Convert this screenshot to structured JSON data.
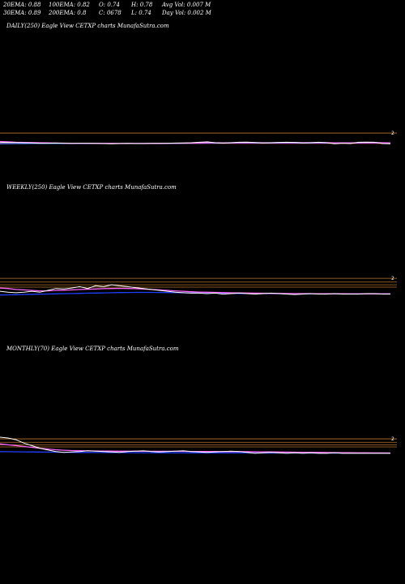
{
  "header": {
    "ema20": "20EMA: 0.88",
    "ema100": "100EMA: 0.82",
    "open": "O: 0.74",
    "high": "H: 0.78",
    "avg_vol": "Avg Vol: 0.007  M",
    "ema30": "30EMA: 0.89",
    "ema200": "200EMA: 0.8",
    "close": "C: 0678",
    "low": "L: 0.74",
    "day_vol": "Day Vol: 0.002  M"
  },
  "colors": {
    "background": "#000000",
    "price": "#ffffff",
    "ema_fast": "#ff66ff",
    "ema_mid": "#4a7dff",
    "ema_slow": "#1f3fff",
    "ema_red": "#ff3333",
    "level_line": "#b8742e"
  },
  "chart_data": [
    {
      "type": "line",
      "label": "DAILY(250) Eagle   View  CETXP charts MunafaSutra.com",
      "right_tick": "2",
      "ylim": [
        0,
        2.1
      ],
      "reference_levels": [
        2
      ],
      "series": [
        {
          "color": "#ffffff",
          "values": [
            0.92,
            0.9,
            0.88,
            0.86,
            0.84,
            0.8,
            0.8,
            0.82,
            0.8,
            0.78,
            0.8,
            0.8,
            0.78,
            0.76,
            0.74,
            0.76,
            0.78,
            0.76,
            0.76,
            0.78,
            0.78,
            0.8,
            0.82,
            0.84,
            0.86,
            0.92,
            0.96,
            0.86,
            0.82,
            0.86,
            0.92,
            0.94,
            0.88,
            0.84,
            0.86,
            0.9,
            0.92,
            0.9,
            0.84,
            0.86,
            0.92,
            0.86,
            0.74,
            0.8,
            0.76,
            0.92,
            0.94,
            0.92,
            0.76,
            0.74
          ]
        },
        {
          "color": "#ff66ff",
          "values": [
            1.0,
            0.96,
            0.92,
            0.9,
            0.88,
            0.86,
            0.84,
            0.82,
            0.81,
            0.8,
            0.8,
            0.79,
            0.79,
            0.78,
            0.78,
            0.77,
            0.77,
            0.77,
            0.77,
            0.78,
            0.78,
            0.79,
            0.8,
            0.81,
            0.82,
            0.84,
            0.86,
            0.86,
            0.85,
            0.86,
            0.87,
            0.88,
            0.87,
            0.86,
            0.86,
            0.87,
            0.88,
            0.88,
            0.87,
            0.87,
            0.88,
            0.87,
            0.85,
            0.85,
            0.84,
            0.86,
            0.88,
            0.88,
            0.86,
            0.84
          ]
        },
        {
          "color": "#4a7dff",
          "values": [
            0.74,
            0.75,
            0.76,
            0.76,
            0.77,
            0.77,
            0.77,
            0.77,
            0.77,
            0.77,
            0.77,
            0.77,
            0.77,
            0.77,
            0.77,
            0.77,
            0.77,
            0.77,
            0.77,
            0.78,
            0.78,
            0.78,
            0.79,
            0.79,
            0.8,
            0.8,
            0.81,
            0.81,
            0.81,
            0.82,
            0.82,
            0.82,
            0.82,
            0.82,
            0.82,
            0.83,
            0.83,
            0.83,
            0.83,
            0.83,
            0.83,
            0.83,
            0.83,
            0.83,
            0.83,
            0.83,
            0.84,
            0.84,
            0.84,
            0.84
          ]
        },
        {
          "color": "#ff3333",
          "values": [
            0.78,
            0.78,
            0.78,
            0.78,
            0.78,
            0.78,
            0.78,
            0.78,
            0.78,
            0.78,
            0.78,
            0.78,
            0.78,
            0.78,
            0.78,
            0.78,
            0.78,
            0.78,
            0.78,
            0.79,
            0.79,
            0.79,
            0.79,
            0.79,
            0.79,
            0.79,
            0.8,
            0.8,
            0.8,
            0.8,
            0.8,
            0.8,
            0.8,
            0.8,
            0.8,
            0.8,
            0.8,
            0.8,
            0.8,
            0.8,
            0.8,
            0.8,
            0.8,
            0.8,
            0.8,
            0.8,
            0.8,
            0.8,
            0.8,
            0.8
          ]
        }
      ]
    },
    {
      "type": "line",
      "label": "WEEKLY(250) Eagle   View  CETXP charts MunafaSutra.com",
      "right_tick": "2",
      "ylim": [
        0,
        2.1
      ],
      "reference_levels": [
        2,
        1.6,
        1.3,
        1.05
      ],
      "series": [
        {
          "color": "#ffffff",
          "values": [
            0.6,
            0.5,
            0.45,
            0.5,
            0.6,
            0.5,
            0.7,
            0.9,
            0.85,
            0.95,
            1.1,
            0.9,
            1.2,
            1.1,
            1.3,
            1.2,
            1.1,
            1.0,
            0.9,
            0.8,
            0.7,
            0.6,
            0.5,
            0.45,
            0.4,
            0.4,
            0.35,
            0.4,
            0.3,
            0.35,
            0.4,
            0.35,
            0.3,
            0.35,
            0.4,
            0.35,
            0.3,
            0.25,
            0.3,
            0.35,
            0.3,
            0.3,
            0.35,
            0.3,
            0.3,
            0.3,
            0.35,
            0.35,
            0.3,
            0.3
          ]
        },
        {
          "color": "#ff66ff",
          "values": [
            0.95,
            0.9,
            0.8,
            0.75,
            0.7,
            0.65,
            0.65,
            0.7,
            0.72,
            0.75,
            0.8,
            0.82,
            0.85,
            0.88,
            0.9,
            0.92,
            0.9,
            0.88,
            0.85,
            0.8,
            0.75,
            0.7,
            0.65,
            0.6,
            0.55,
            0.52,
            0.5,
            0.48,
            0.46,
            0.44,
            0.42,
            0.41,
            0.4,
            0.39,
            0.38,
            0.37,
            0.36,
            0.35,
            0.35,
            0.34,
            0.34,
            0.33,
            0.33,
            0.33,
            0.32,
            0.32,
            0.32,
            0.32,
            0.32,
            0.32
          ]
        },
        {
          "color": "#1f3fff",
          "values": [
            0.2,
            0.22,
            0.24,
            0.26,
            0.28,
            0.3,
            0.31,
            0.33,
            0.35,
            0.36,
            0.38,
            0.4,
            0.41,
            0.43,
            0.45,
            0.46,
            0.47,
            0.48,
            0.48,
            0.48,
            0.47,
            0.46,
            0.45,
            0.44,
            0.43,
            0.42,
            0.41,
            0.4,
            0.39,
            0.38,
            0.37,
            0.37,
            0.36,
            0.36,
            0.35,
            0.35,
            0.34,
            0.34,
            0.34,
            0.33,
            0.33,
            0.33,
            0.33,
            0.32,
            0.32,
            0.32,
            0.32,
            0.32,
            0.32,
            0.32
          ]
        }
      ]
    },
    {
      "type": "line",
      "label": "MONTHLY(70) Eagle   View  CETXP charts MunafaSutra.com",
      "right_tick": "2",
      "ylim": [
        0,
        2.1
      ],
      "reference_levels": [
        2,
        1.6,
        1.3,
        1.05
      ],
      "series": [
        {
          "color": "#ffffff",
          "values": [
            2.2,
            2.1,
            1.9,
            1.5,
            1.2,
            0.9,
            0.7,
            0.5,
            0.4,
            0.45,
            0.5,
            0.6,
            0.55,
            0.5,
            0.45,
            0.4,
            0.5,
            0.55,
            0.6,
            0.5,
            0.45,
            0.5,
            0.55,
            0.6,
            0.5,
            0.45,
            0.4,
            0.45,
            0.5,
            0.55,
            0.5,
            0.4,
            0.3,
            0.35,
            0.4,
            0.35,
            0.3,
            0.35,
            0.3,
            0.35,
            0.3,
            0.3,
            0.35,
            0.3,
            0.3,
            0.3,
            0.3,
            0.3,
            0.3,
            0.3
          ]
        },
        {
          "color": "#ff66ff",
          "values": [
            1.4,
            1.3,
            1.2,
            1.1,
            1.0,
            0.9,
            0.8,
            0.72,
            0.66,
            0.62,
            0.6,
            0.58,
            0.57,
            0.56,
            0.55,
            0.54,
            0.54,
            0.54,
            0.54,
            0.53,
            0.53,
            0.53,
            0.53,
            0.53,
            0.52,
            0.52,
            0.51,
            0.51,
            0.5,
            0.5,
            0.5,
            0.49,
            0.48,
            0.47,
            0.46,
            0.45,
            0.44,
            0.43,
            0.42,
            0.41,
            0.4,
            0.39,
            0.38,
            0.37,
            0.36,
            0.35,
            0.35,
            0.34,
            0.34,
            0.33
          ]
        },
        {
          "color": "#1f3fff",
          "values": [
            0.5,
            0.49,
            0.48,
            0.47,
            0.46,
            0.45,
            0.44,
            0.43,
            0.42,
            0.41,
            0.4,
            0.4,
            0.39,
            0.39,
            0.38,
            0.38,
            0.38,
            0.37,
            0.37,
            0.37,
            0.36,
            0.36,
            0.36,
            0.36,
            0.35,
            0.35,
            0.35,
            0.35,
            0.34,
            0.34,
            0.34,
            0.34,
            0.34,
            0.33,
            0.33,
            0.33,
            0.33,
            0.33,
            0.33,
            0.32,
            0.32,
            0.32,
            0.32,
            0.32,
            0.32,
            0.32,
            0.32,
            0.32,
            0.32,
            0.32
          ]
        }
      ]
    }
  ]
}
